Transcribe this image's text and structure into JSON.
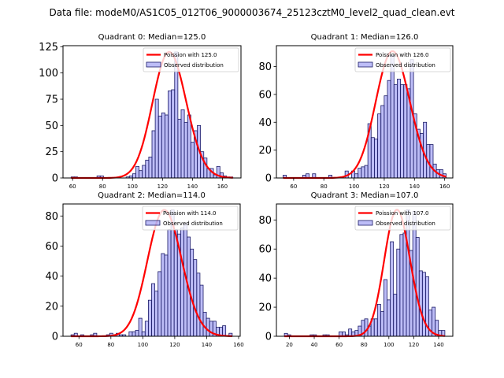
{
  "figure": {
    "suptitle": "Data file: modeM0/AS1C05_012T06_9000003674_25123cztM0_level2_quad_clean.evt",
    "bar_color": "#7b7bf0",
    "bar_edge_color": "#1a1a66",
    "curve_color": "#ff0000"
  },
  "chart_data": [
    {
      "type": "bar",
      "title": "Quadrant 0: Median=125.0",
      "xlabel": "",
      "ylabel": "",
      "xlim": [
        53.6,
        172.4
      ],
      "ylim": [
        0,
        126
      ],
      "xticks": [
        60,
        80,
        100,
        120,
        140,
        160
      ],
      "yticks": [
        0,
        25,
        50,
        75,
        100,
        125
      ],
      "bin_start": 59,
      "bin_end": 167,
      "counts": [
        1,
        1,
        0,
        0,
        0,
        0,
        0,
        0,
        2,
        2,
        0,
        0,
        0,
        0,
        0,
        0,
        0,
        1,
        2,
        4,
        11,
        7,
        12,
        17,
        20,
        45,
        75,
        59,
        62,
        60,
        83,
        84,
        120,
        56,
        65,
        53,
        60,
        34,
        45,
        50,
        25,
        19,
        9,
        9,
        3,
        11,
        5,
        2,
        1,
        1
      ],
      "poisson_mean": 125.0,
      "poisson_scale": 120,
      "legend": [
        "Poission with 125.0",
        "Observed distribution"
      ],
      "legend_loc": "upper-right"
    },
    {
      "type": "bar",
      "title": "Quadrant 1: Median=126.0",
      "xlabel": "",
      "ylabel": "",
      "xlim": [
        48.6,
        165.4
      ],
      "ylim": [
        0,
        95
      ],
      "xticks": [
        60,
        80,
        100,
        120,
        140,
        160
      ],
      "yticks": [
        0,
        20,
        40,
        60,
        80
      ],
      "bin_start": 53,
      "bin_end": 161,
      "counts": [
        2,
        0,
        0,
        0,
        0,
        0,
        2,
        3,
        0,
        3,
        0,
        0,
        0,
        0,
        2,
        0,
        0,
        0,
        0,
        5,
        0,
        5,
        3,
        7,
        8,
        9,
        39,
        29,
        28,
        46,
        52,
        59,
        70,
        88,
        67,
        71,
        67,
        67,
        64,
        85,
        46,
        35,
        32,
        40,
        24,
        24,
        10,
        6,
        6,
        3
      ],
      "poisson_mean": 126.0,
      "poisson_scale": 91,
      "legend": [
        "Poission with 126.0",
        "Observed distribution"
      ],
      "legend_loc": "upper-right"
    },
    {
      "type": "bar",
      "title": "Quadrant 2: Median=114.0",
      "xlabel": "",
      "ylabel": "",
      "xlim": [
        50,
        161
      ],
      "ylim": [
        0,
        88
      ],
      "xticks": [
        60,
        80,
        100,
        120,
        140,
        160
      ],
      "yticks": [
        0,
        20,
        40,
        60,
        80
      ],
      "bin_start": 55,
      "bin_end": 156,
      "counts": [
        1,
        2,
        0,
        1,
        0,
        0,
        1,
        2,
        0,
        0,
        0,
        1,
        2,
        0,
        2,
        1,
        1,
        0,
        3,
        3,
        4,
        12,
        3,
        10,
        24,
        35,
        30,
        43,
        55,
        54,
        71,
        84,
        71,
        68,
        72,
        75,
        66,
        58,
        51,
        42,
        34,
        16,
        12,
        10,
        10,
        6,
        6,
        7,
        0,
        2
      ],
      "poisson_mean": 114.0,
      "poisson_scale": 84,
      "legend": [
        "Poission with 114.0",
        "Observed distribution"
      ],
      "legend_loc": "upper-right"
    },
    {
      "type": "bar",
      "title": "Quadrant 3: Median=107.0",
      "xlabel": "",
      "ylabel": "",
      "xlim": [
        9.6,
        151.4
      ],
      "ylim": [
        0,
        91
      ],
      "xticks": [
        20,
        40,
        60,
        80,
        100,
        120,
        140
      ],
      "yticks": [
        0,
        20,
        40,
        60,
        80
      ],
      "bin_start": 16,
      "bin_end": 145,
      "counts": [
        2,
        1,
        0,
        0,
        0,
        0,
        0,
        0,
        1,
        1,
        0,
        0,
        1,
        1,
        0,
        0,
        0,
        3,
        3,
        1,
        5,
        3,
        4,
        7,
        11,
        12,
        7,
        12,
        12,
        22,
        17,
        39,
        25,
        65,
        29,
        60,
        70,
        71,
        87,
        59,
        86,
        68,
        45,
        44,
        41,
        18,
        20,
        11,
        4,
        4
      ],
      "poisson_mean": 107.0,
      "poisson_scale": 87,
      "legend": [
        "Poission with 107.0",
        "Observed distribution"
      ],
      "legend_loc": "upper-right"
    }
  ]
}
